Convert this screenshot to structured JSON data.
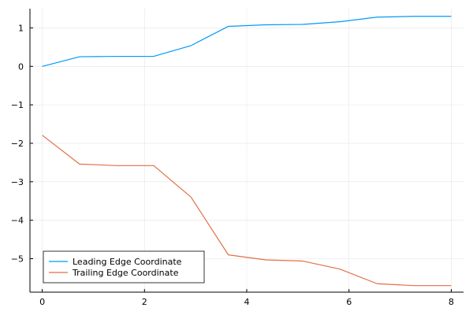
{
  "chart_data": {
    "type": "line",
    "title": "",
    "xlabel": "",
    "ylabel": "",
    "xlim": [
      -0.24,
      8.24
    ],
    "ylim": [
      -5.87,
      1.5
    ],
    "xticks": [
      0,
      2,
      4,
      6,
      8
    ],
    "xtick_labels": [
      "0",
      "2",
      "4",
      "6",
      "8"
    ],
    "yticks": [
      1,
      0,
      -1,
      -2,
      -3,
      -4,
      -5
    ],
    "ytick_labels": [
      "1",
      "0",
      "−1",
      "−2",
      "−3",
      "−4",
      "−5"
    ],
    "grid": true,
    "legend_position": "bottom-left",
    "series": [
      {
        "name": "Leading Edge Coordinate",
        "color": "#009AFA",
        "x": [
          0,
          0.73,
          1.46,
          2.18,
          2.91,
          3.64,
          4.37,
          5.09,
          5.82,
          6.55,
          7.27,
          8.0
        ],
        "y": [
          0.0,
          0.25,
          0.26,
          0.26,
          0.54,
          1.04,
          1.08,
          1.09,
          1.16,
          1.28,
          1.3,
          1.3
        ]
      },
      {
        "name": "Trailing Edge Coordinate",
        "color": "#E26F46",
        "x": [
          0,
          0.73,
          1.46,
          2.18,
          2.91,
          3.64,
          4.37,
          5.09,
          5.82,
          6.55,
          7.27,
          8.0
        ],
        "y": [
          -1.79,
          -2.54,
          -2.58,
          -2.58,
          -3.4,
          -4.9,
          -5.03,
          -5.06,
          -5.27,
          -5.65,
          -5.7,
          -5.7
        ]
      }
    ]
  }
}
